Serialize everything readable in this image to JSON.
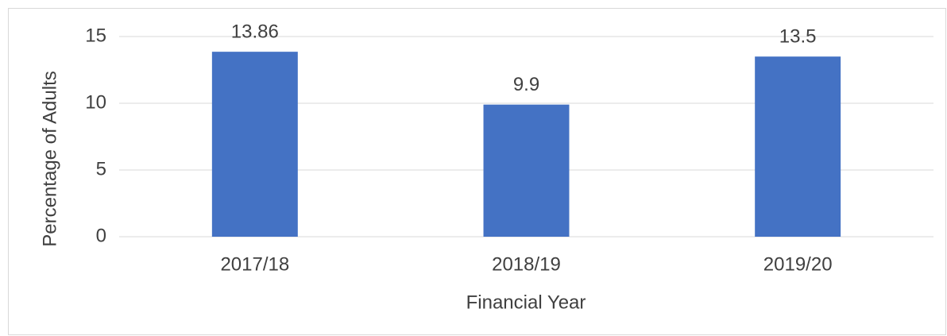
{
  "chart_data": {
    "type": "bar",
    "categories": [
      "2017/18",
      "2018/19",
      "2019/20"
    ],
    "values": [
      13.86,
      9.9,
      13.5
    ],
    "color": "#4472c4",
    "ylim": [
      0,
      15
    ],
    "yticks": [
      0,
      5,
      10,
      15
    ],
    "grid": true,
    "xlabel": "Financial Year",
    "ylabel": "Percentage of Adults"
  }
}
